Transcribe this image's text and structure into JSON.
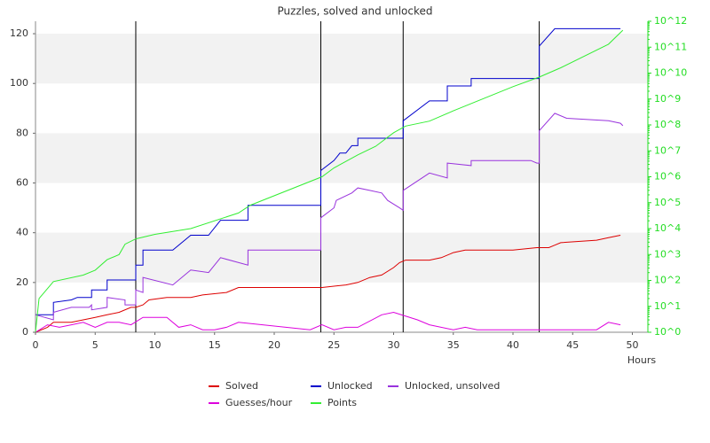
{
  "chart_data": {
    "type": "line",
    "title": "Puzzles, solved and unlocked",
    "xlabel": "Hours",
    "xlim": [
      0,
      51.3
    ],
    "xticks": [
      0,
      5,
      10,
      15,
      20,
      25,
      30,
      35,
      40,
      45,
      50
    ],
    "ylim": [
      0,
      125
    ],
    "yticks": [
      0,
      20,
      40,
      60,
      80,
      100,
      120
    ],
    "y2lim": [
      1,
      1000000000000
    ],
    "y2log": true,
    "y2color": "#22dd22",
    "y2ticks": [
      {
        "value": 1,
        "label": "10^0"
      },
      {
        "value": 10,
        "label": "10^1"
      },
      {
        "value": 100,
        "label": "10^2"
      },
      {
        "value": 1000,
        "label": "10^3"
      },
      {
        "value": 10000,
        "label": "10^4"
      },
      {
        "value": 100000,
        "label": "10^5"
      },
      {
        "value": 1000000,
        "label": "10^6"
      },
      {
        "value": 10000000,
        "label": "10^7"
      },
      {
        "value": 100000000,
        "label": "10^8"
      },
      {
        "value": 1000000000,
        "label": "10^9"
      },
      {
        "value": 10000000000,
        "label": "10^10"
      },
      {
        "value": 100000000000,
        "label": "10^11"
      },
      {
        "value": 1000000000000,
        "label": "10^12"
      }
    ],
    "grid": true,
    "legend": "bottom",
    "vlines": [
      8.4,
      23.9,
      30.8,
      42.2
    ],
    "series": [
      {
        "name": "Solved",
        "color": "#dd0000",
        "x": [
          0,
          1,
          1.5,
          3,
          4,
          5,
          6,
          7,
          8,
          8.4,
          9,
          9.5,
          11,
          13,
          14,
          16,
          17,
          20,
          23.9,
          24,
          26,
          27,
          28,
          29,
          30,
          30.5,
          31,
          33,
          34,
          35,
          36,
          40,
          42,
          43,
          43.5,
          44,
          47,
          48,
          49
        ],
        "values": [
          0,
          2,
          4,
          4,
          5,
          6,
          7,
          8,
          10,
          10,
          11,
          13,
          14,
          14,
          15,
          16,
          18,
          18,
          18,
          18,
          19,
          20,
          22,
          23,
          26,
          28,
          29,
          29,
          30,
          32,
          33,
          33,
          34,
          34,
          35,
          36,
          37,
          38,
          39
        ]
      },
      {
        "name": "Unlocked",
        "color": "#0000cc",
        "x": [
          0,
          1.5,
          1.5,
          3,
          3.5,
          4.7,
          4.7,
          6,
          6,
          8.4,
          8.4,
          9,
          9,
          11.5,
          13,
          14.5,
          15.5,
          17.8,
          17.8,
          23.9,
          23.9,
          25,
          25.5,
          26,
          26.5,
          27,
          27,
          30.8,
          30.8,
          33,
          34.5,
          34.5,
          36.5,
          36.5,
          42.2,
          42.2,
          43.5,
          49
        ],
        "values": [
          7,
          7,
          12,
          13,
          14,
          14,
          17,
          17,
          21,
          21,
          27,
          27,
          33,
          33,
          39,
          39,
          45,
          45,
          51,
          51,
          65,
          69,
          72,
          72,
          75,
          75,
          78,
          78,
          85,
          93,
          93,
          99,
          99,
          102,
          102,
          115,
          122,
          122
        ]
      },
      {
        "name": "Unlocked, unsolved",
        "color": "#9933dd",
        "x": [
          0,
          1.5,
          1.5,
          3,
          4.5,
          4.7,
          4.7,
          6,
          6,
          7.5,
          7.5,
          8.4,
          8.4,
          9,
          9,
          11.5,
          13,
          14.5,
          15.5,
          17.8,
          17.8,
          23.9,
          23.9,
          25,
          25.2,
          26.5,
          27,
          28,
          29,
          29.5,
          30.5,
          30.8,
          30.8,
          33,
          34.5,
          34.5,
          36.5,
          36.5,
          41.5,
          42,
          42.2,
          42.2,
          43.5,
          44.5,
          48,
          49,
          49.2
        ],
        "values": [
          7,
          5,
          8,
          10,
          10,
          11,
          9,
          10,
          14,
          13,
          11,
          11,
          17,
          16,
          22,
          19,
          25,
          24,
          30,
          27,
          33,
          33,
          46,
          50,
          53,
          56,
          58,
          57,
          56,
          53,
          50,
          49,
          57,
          64,
          62,
          68,
          67,
          69,
          69,
          68,
          68,
          81,
          88,
          86,
          85,
          84,
          83
        ]
      },
      {
        "name": "Guesses/hour",
        "color": "#dd00dd",
        "x": [
          0,
          1,
          2,
          3,
          4,
          5,
          6,
          7,
          8,
          9,
          11,
          12,
          13,
          14,
          15,
          16,
          17,
          23,
          24,
          25,
          26,
          27,
          29,
          30,
          32,
          33,
          35,
          36,
          37,
          47,
          48,
          49
        ],
        "values": [
          0,
          3,
          2,
          3,
          4,
          2,
          4,
          4,
          3,
          6,
          6,
          2,
          3,
          1,
          1,
          2,
          4,
          1,
          3,
          1,
          2,
          2,
          7,
          8,
          5,
          3,
          1,
          2,
          1,
          1,
          4,
          3
        ]
      },
      {
        "name": "Points",
        "color": "#33ee33",
        "axis": "y2",
        "x": [
          0,
          0.3,
          1.5,
          4,
          5,
          6,
          7,
          7.5,
          8.4,
          10,
          13,
          17,
          18,
          24,
          25,
          27,
          28.5,
          30,
          31,
          33,
          35,
          40,
          42.2,
          44,
          48,
          49.2
        ],
        "values": [
          1,
          20,
          90,
          160,
          250,
          630,
          1000,
          2500,
          4000,
          6000,
          10000,
          40000,
          80000,
          1000000,
          2200000,
          7000000,
          15000000,
          50000000,
          90000000,
          140000000,
          350000000,
          3000000000,
          7000000000,
          16000000000,
          130000000000,
          450000000000
        ]
      }
    ]
  }
}
